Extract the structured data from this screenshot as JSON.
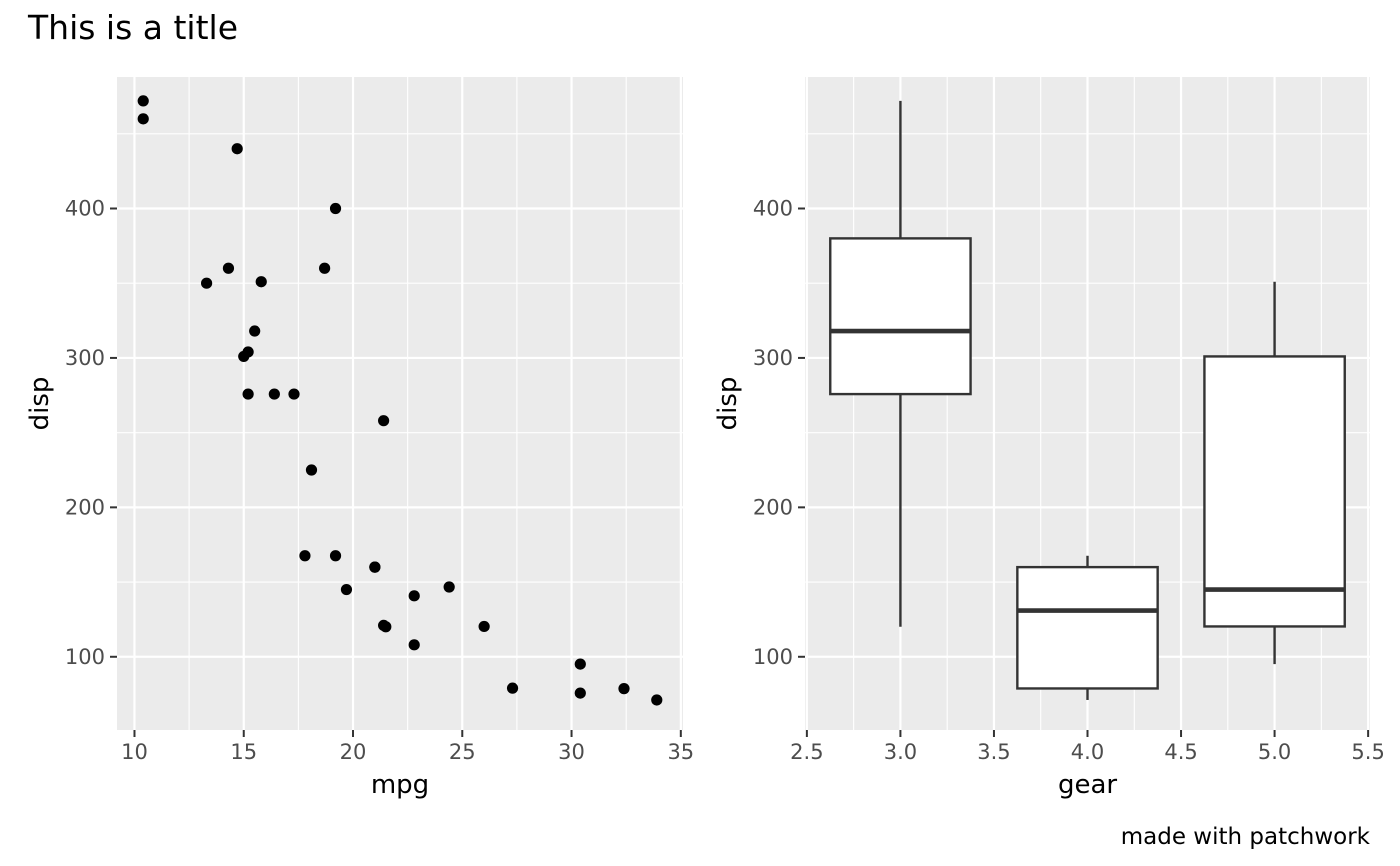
{
  "title": "This is a title",
  "caption": "made with patchwork",
  "colors": {
    "panel": "#ebebeb",
    "grid": "#ffffff",
    "ink": "#000000",
    "box_line": "#333333",
    "tick_text": "#4d4d4d"
  },
  "chart_data": [
    {
      "type": "scatter",
      "xlabel": "mpg",
      "ylabel": "disp",
      "xlim": [
        9.2,
        35.1
      ],
      "ylim": [
        51,
        488
      ],
      "xticks": [
        10,
        15,
        20,
        25,
        30,
        35
      ],
      "yticks": [
        100,
        200,
        300,
        400
      ],
      "xtick_labels": [
        "10",
        "15",
        "20",
        "25",
        "30",
        "35"
      ],
      "ytick_labels": [
        "100",
        "200",
        "300",
        "400"
      ],
      "grid": true,
      "points": [
        [
          21.0,
          160
        ],
        [
          21.0,
          160
        ],
        [
          22.8,
          108
        ],
        [
          21.4,
          258
        ],
        [
          18.7,
          360
        ],
        [
          18.1,
          225
        ],
        [
          14.3,
          360
        ],
        [
          24.4,
          146.7
        ],
        [
          22.8,
          140.8
        ],
        [
          19.2,
          167.6
        ],
        [
          17.8,
          167.6
        ],
        [
          16.4,
          275.8
        ],
        [
          17.3,
          275.8
        ],
        [
          15.2,
          275.8
        ],
        [
          10.4,
          472
        ],
        [
          10.4,
          460
        ],
        [
          14.7,
          440
        ],
        [
          32.4,
          78.7
        ],
        [
          30.4,
          75.7
        ],
        [
          33.9,
          71.1
        ],
        [
          21.5,
          120.1
        ],
        [
          15.5,
          318
        ],
        [
          15.2,
          304
        ],
        [
          13.3,
          350
        ],
        [
          19.2,
          400
        ],
        [
          27.3,
          79
        ],
        [
          26.0,
          120.3
        ],
        [
          30.4,
          95.1
        ],
        [
          15.8,
          351
        ],
        [
          19.7,
          145
        ],
        [
          15.0,
          301
        ],
        [
          21.4,
          121
        ]
      ]
    },
    {
      "type": "box",
      "xlabel": "gear",
      "ylabel": "disp",
      "xlim": [
        2.49,
        5.51
      ],
      "ylim": [
        51,
        488
      ],
      "xticks": [
        2.5,
        3.0,
        3.5,
        4.0,
        4.5,
        5.0,
        5.5
      ],
      "yticks": [
        100,
        200,
        300,
        400
      ],
      "xtick_labels": [
        "2.5",
        "3.0",
        "3.5",
        "4.0",
        "4.5",
        "5.0",
        "5.5"
      ],
      "ytick_labels": [
        "100",
        "200",
        "300",
        "400"
      ],
      "grid": true,
      "boxes": [
        {
          "x": 3,
          "min": 120.1,
          "q1": 275.8,
          "median": 318,
          "q3": 380,
          "max": 472
        },
        {
          "x": 4,
          "min": 71.1,
          "q1": 78.8,
          "median": 130.9,
          "q3": 160,
          "max": 167.6
        },
        {
          "x": 5,
          "min": 95.1,
          "q1": 120.3,
          "median": 145,
          "q3": 301,
          "max": 351
        }
      ]
    }
  ]
}
